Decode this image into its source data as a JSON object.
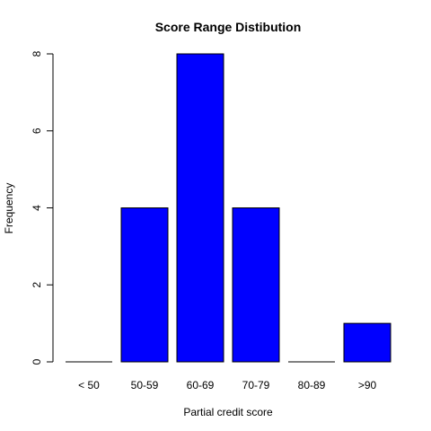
{
  "chart_data": {
    "type": "bar",
    "title": "Score Range Distibution",
    "xlabel": "Partial credit score",
    "ylabel": "Frequency",
    "categories": [
      "< 50",
      "50-59",
      "60-69",
      "70-79",
      "80-89",
      ">90"
    ],
    "values": [
      0,
      4,
      8,
      4,
      0,
      1
    ],
    "ylim": [
      0,
      8
    ],
    "yticks": [
      0,
      2,
      4,
      6,
      8
    ],
    "bar_color": "#0000ff",
    "bar_border_color": "#000000",
    "grid": false,
    "legend": "none"
  }
}
